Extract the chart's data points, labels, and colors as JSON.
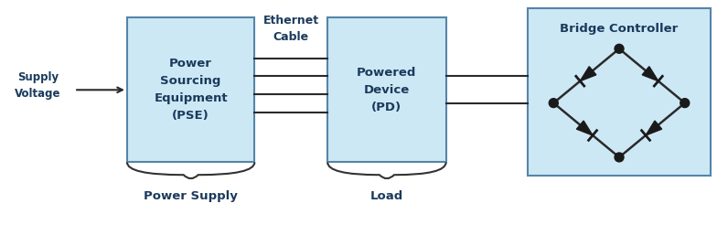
{
  "background_color": "#ffffff",
  "box_fill_color": "#cde8f5",
  "box_edge_color": "#5585a8",
  "box_edge_width": 1.5,
  "pse_label": "Power\nSourcing\nEquipment\n(PSE)",
  "pd_label": "Powered\nDevice\n(PD)",
  "bridge_label": "Bridge Controller",
  "supply_label": "Supply\nVoltage",
  "ethernet_label": "Ethernet\nCable",
  "power_supply_label": "Power Supply",
  "load_label": "Load",
  "bold_color": "#1a3a5c",
  "line_color": "#2a2a2a",
  "diode_color": "#1a1a1a",
  "dot_color": "#1a1a1a",
  "brace_color": "#333333"
}
